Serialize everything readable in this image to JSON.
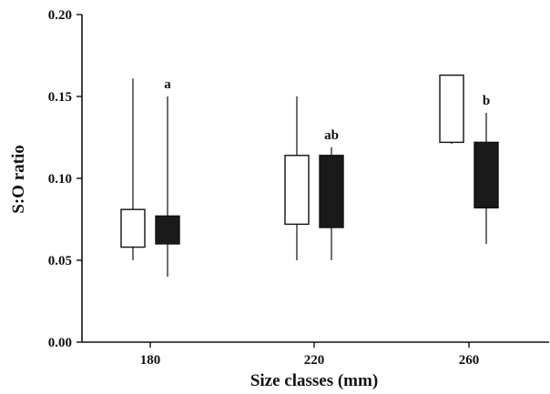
{
  "chart_data": {
    "type": "box",
    "xlabel": "Size classes (mm)",
    "ylabel": "S:O ratio",
    "ylim": [
      0,
      0.2
    ],
    "yticks": [
      "0.00",
      "0.05",
      "0.10",
      "0.15",
      "0.20"
    ],
    "xticks": [
      "180",
      "220",
      "260"
    ],
    "grid": false,
    "colors": {
      "white_box": "#ffffff",
      "black_box": "#1a1a1a",
      "stroke": "#111111"
    },
    "boxes": [
      {
        "category": "180",
        "fill": "white",
        "whisker_low": 0.05,
        "q1": 0.058,
        "q3": 0.081,
        "whisker_high": 0.161,
        "letter": ""
      },
      {
        "category": "180",
        "fill": "black",
        "whisker_low": 0.04,
        "q1": 0.06,
        "q3": 0.077,
        "whisker_high": 0.15,
        "letter": "a"
      },
      {
        "category": "220",
        "fill": "white",
        "whisker_low": 0.05,
        "q1": 0.072,
        "q3": 0.114,
        "whisker_high": 0.15,
        "letter": ""
      },
      {
        "category": "220",
        "fill": "black",
        "whisker_low": 0.05,
        "q1": 0.07,
        "q3": 0.114,
        "whisker_high": 0.119,
        "letter": "ab"
      },
      {
        "category": "260",
        "fill": "white",
        "whisker_low": 0.121,
        "q1": 0.122,
        "q3": 0.163,
        "whisker_high": 0.163,
        "letter": ""
      },
      {
        "category": "260",
        "fill": "black",
        "whisker_low": 0.06,
        "q1": 0.082,
        "q3": 0.122,
        "whisker_high": 0.14,
        "letter": "b"
      }
    ]
  }
}
